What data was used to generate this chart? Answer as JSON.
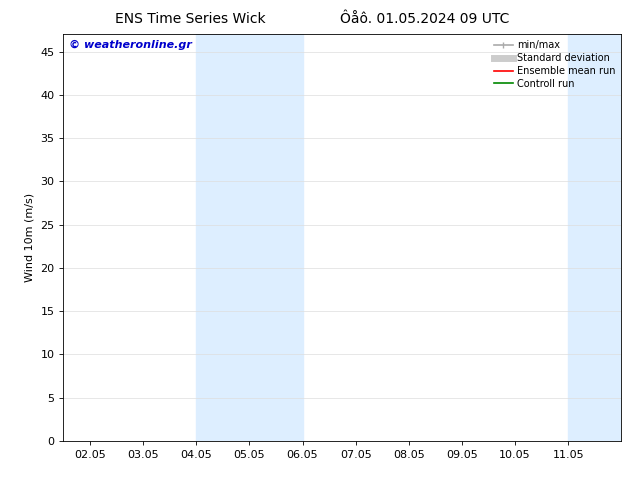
{
  "title_left": "ENS Time Series Wick",
  "title_right": "Ôåô. 01.05.2024 09 UTC",
  "ylabel": "Wind 10m (m/s)",
  "watermark": "© weatheronline.gr",
  "watermark_color": "#0000cc",
  "ylim": [
    0,
    47
  ],
  "yticks": [
    0,
    5,
    10,
    15,
    20,
    25,
    30,
    35,
    40,
    45
  ],
  "xtick_labels": [
    "02.05",
    "03.05",
    "04.05",
    "05.05",
    "06.05",
    "07.05",
    "08.05",
    "09.05",
    "10.05",
    "11.05"
  ],
  "x_positions": [
    2,
    3,
    4,
    5,
    6,
    7,
    8,
    9,
    10,
    11
  ],
  "x_min": 1.5,
  "x_max": 12.0,
  "shaded_bands": [
    {
      "x_start": 4.0,
      "x_end": 5.0,
      "color": "#ddeeff"
    },
    {
      "x_start": 5.0,
      "x_end": 6.0,
      "color": "#ddeeff"
    },
    {
      "x_start": 11.0,
      "x_end": 11.5,
      "color": "#ddeeff"
    },
    {
      "x_start": 11.5,
      "x_end": 12.0,
      "color": "#ddeeff"
    }
  ],
  "legend_items": [
    {
      "label": "min/max",
      "color": "#aaaaaa",
      "lw": 1.2
    },
    {
      "label": "Standard deviation",
      "color": "#cccccc",
      "lw": 5
    },
    {
      "label": "Ensemble mean run",
      "color": "#ff0000",
      "lw": 1.2
    },
    {
      "label": "Controll run",
      "color": "#008800",
      "lw": 1.2
    }
  ],
  "background_color": "#ffffff",
  "plot_bg_color": "#ffffff",
  "grid_color": "#dddddd",
  "title_fontsize": 10,
  "axis_fontsize": 8,
  "ylabel_fontsize": 8,
  "legend_fontsize": 7,
  "watermark_fontsize": 8
}
